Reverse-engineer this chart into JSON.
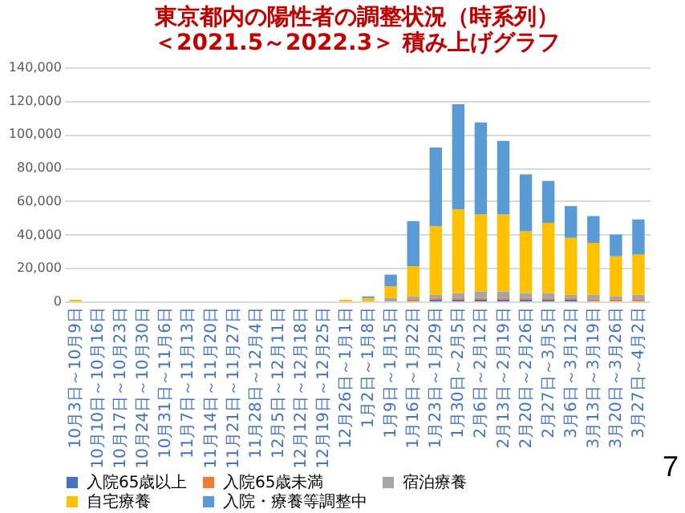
{
  "chart_data": {
    "type": "bar",
    "stacked": true,
    "title": [
      "東京都内の陽性者の調整状況（時系列）",
      "＜2021.5～2022.3＞ 積み上げグラフ"
    ],
    "categories": [
      "10月3日～10月9日",
      "10月10日～10月16日",
      "10月17日～10月23日",
      "10月24日～10月30日",
      "10月31日～11月6日",
      "11月7日～11月13日",
      "11月14日～11月20日",
      "11月21日～11月27日",
      "11月28日～12月4日",
      "12月5日～12月11日",
      "12月12日～12月18日",
      "12月19日～12月25日",
      "12月26日～1月1日",
      "1月2日～1月8日",
      "1月9日～1月15日",
      "1月16日～1月22日",
      "1月23日～1月29日",
      "1月30日～2月5日",
      "2月6日～2月12日",
      "2月13日～2月19日",
      "2月20日～2月26日",
      "2月27日～3月5日",
      "3月6日～3月12日",
      "3月13日～3月19日",
      "3月20日～3月26日",
      "3月27日～4月2日"
    ],
    "series": [
      {
        "name": "入院65歳以上",
        "color": "#4472c4",
        "values": [
          0,
          0,
          0,
          0,
          0,
          0,
          0,
          0,
          0,
          0,
          0,
          0,
          0,
          0,
          0,
          0,
          1000,
          1000,
          1000,
          1000,
          1000,
          1000,
          1000,
          0,
          0,
          0
        ]
      },
      {
        "name": "入院65歳未満",
        "color": "#ed7d31",
        "values": [
          0,
          0,
          0,
          0,
          0,
          0,
          0,
          0,
          0,
          0,
          0,
          0,
          0,
          0,
          0,
          1000,
          1000,
          1000,
          1000,
          1000,
          1000,
          1000,
          1000,
          1000,
          1000,
          1000
        ]
      },
      {
        "name": "宿泊療養",
        "color": "#a5a5a5",
        "values": [
          0,
          0,
          0,
          0,
          0,
          0,
          0,
          0,
          0,
          0,
          0,
          0,
          0,
          0,
          2000,
          2000,
          2000,
          3000,
          4000,
          4000,
          3000,
          3000,
          2000,
          3000,
          2000,
          3000
        ]
      },
      {
        "name": "自宅療養",
        "color": "#ffc000",
        "values": [
          1000,
          0,
          0,
          0,
          0,
          0,
          0,
          0,
          0,
          0,
          0,
          0,
          1000,
          2000,
          7000,
          18000,
          41000,
          50000,
          46000,
          46000,
          37000,
          42000,
          34000,
          31000,
          24000,
          24000
        ]
      },
      {
        "name": "入院・療養等調整中",
        "color": "#5b9bd5",
        "values": [
          0,
          0,
          0,
          0,
          0,
          0,
          0,
          0,
          0,
          0,
          0,
          0,
          0,
          1000,
          7000,
          27000,
          47000,
          63000,
          55000,
          44000,
          34000,
          25000,
          19000,
          16000,
          13000,
          21000
        ]
      }
    ],
    "ylim": [
      0,
      140000
    ],
    "yticks": [
      0,
      {
        "value": 20000,
        "label": "20,000"
      },
      {
        "value": 40000,
        "label": "40,000"
      },
      {
        "value": 60000,
        "label": "60,000"
      },
      {
        "value": 80000,
        "label": "80,000"
      },
      {
        "value": 100000,
        "label": "100,000"
      },
      {
        "value": 120000,
        "label": "120,000"
      },
      {
        "value": 140000,
        "label": "140,000"
      }
    ],
    "grid": "y",
    "legend": "bottom",
    "annotations": [
      "7"
    ]
  }
}
